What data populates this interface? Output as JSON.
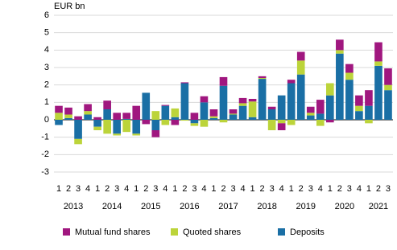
{
  "chart_data": {
    "type": "stacked_bar",
    "y_label": "EUR bn",
    "categories": [
      "1",
      "2",
      "3",
      "4",
      "1",
      "2",
      "3",
      "4",
      "1",
      "2",
      "3",
      "4",
      "1",
      "2",
      "3",
      "4",
      "1",
      "2",
      "3",
      "4",
      "1",
      "2",
      "3",
      "4",
      "1",
      "2",
      "3",
      "4",
      "1",
      "2",
      "3",
      "4",
      "1",
      "2",
      "3"
    ],
    "years": [
      "2013",
      "2014",
      "2015",
      "2016",
      "2017",
      "2018",
      "2019",
      "2020",
      "2021"
    ],
    "series": [
      {
        "name": "Deposits",
        "color": "#1a6fa5",
        "values": [
          -0.3,
          0.1,
          -1.1,
          0.3,
          -0.4,
          0.6,
          -0.8,
          0.05,
          -0.8,
          1.55,
          -0.6,
          0.8,
          0.15,
          2.1,
          -0.2,
          1.0,
          0.1,
          1.95,
          0.3,
          0.8,
          0.15,
          2.35,
          0.6,
          1.4,
          2.1,
          2.6,
          0.25,
          0.35,
          1.4,
          3.8,
          2.3,
          0.5,
          0.8,
          3.1,
          1.7
        ]
      },
      {
        "name": "Quoted shares",
        "color": "#bcd43a",
        "values": [
          0.4,
          0.2,
          -0.3,
          0.2,
          -0.2,
          -0.8,
          -0.1,
          -0.7,
          -0.1,
          0,
          0.5,
          -0.3,
          0.5,
          -0.05,
          -0.15,
          -0.4,
          0.1,
          -0.15,
          0.05,
          0.15,
          0.9,
          0.05,
          -0.6,
          -0.2,
          -0.3,
          0.8,
          0.15,
          -0.35,
          0.7,
          0.2,
          0.4,
          0.3,
          -0.2,
          0.25,
          0.3
        ]
      },
      {
        "name": "Mutual fund shares",
        "color": "#a0177f",
        "values": [
          0.4,
          0.4,
          0.2,
          0.4,
          0.15,
          0.5,
          0.4,
          0.35,
          0.8,
          -0.25,
          -0.4,
          0.05,
          -0.3,
          0.05,
          0.4,
          0.35,
          0.4,
          0.5,
          0.25,
          0.3,
          0.15,
          0.1,
          0.15,
          -0.4,
          0.2,
          0.5,
          0.35,
          0.8,
          -0.15,
          0.6,
          0.5,
          0.6,
          0.9,
          1.1,
          0.95
        ]
      }
    ],
    "ylim": [
      -3,
      6
    ],
    "yticks": [
      -3,
      -2,
      -1,
      0,
      1,
      2,
      3,
      4,
      5,
      6
    ],
    "grid": true
  }
}
